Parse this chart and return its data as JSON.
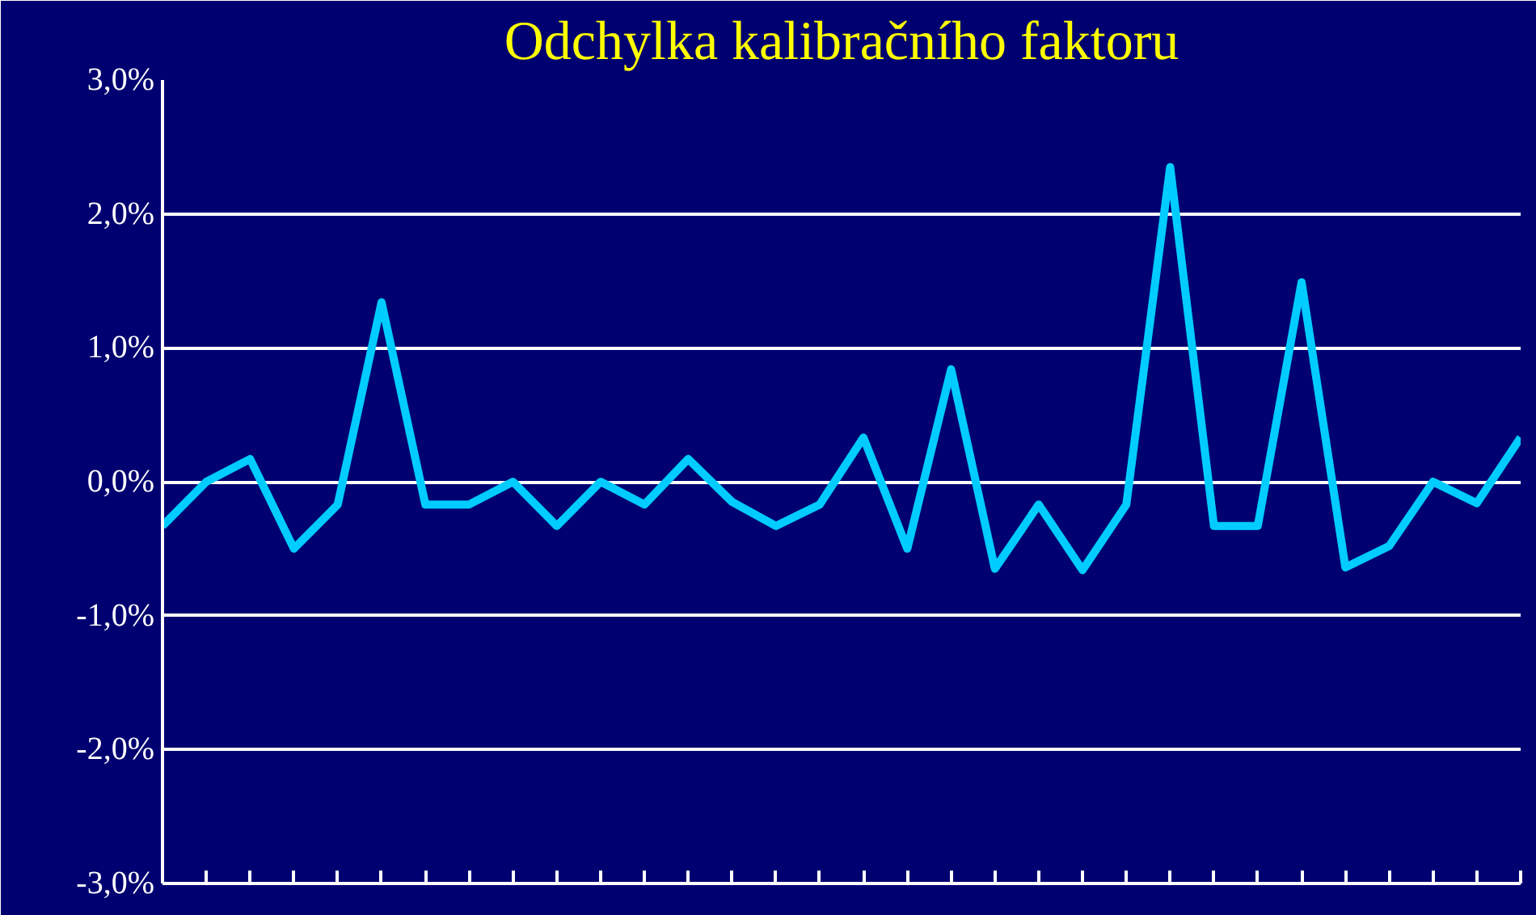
{
  "chart_data": {
    "type": "line",
    "title": "Odchylka kalibračního faktoru",
    "categories": [
      null,
      null,
      null,
      null,
      null,
      null,
      null,
      null,
      null,
      null,
      null,
      null,
      null,
      null,
      null,
      null,
      null,
      null,
      null,
      null,
      null,
      null,
      null,
      null,
      null,
      null,
      null,
      null,
      null,
      null,
      null,
      null
    ],
    "series": [
      {
        "color": "#00ccff",
        "values": [
          -0.33,
          0.0,
          0.17,
          -0.5,
          -0.17,
          1.34,
          -0.17,
          -0.17,
          0.0,
          -0.33,
          0.0,
          -0.17,
          0.17,
          -0.15,
          -0.33,
          -0.17,
          0.33,
          -0.5,
          0.84,
          -0.65,
          -0.17,
          -0.66,
          -0.17,
          2.35,
          -0.33,
          -0.33,
          1.49,
          -0.64,
          -0.48,
          0.0,
          -0.16,
          0.33
        ]
      }
    ],
    "ylim": [
      -3,
      3
    ],
    "yticks": [
      {
        "value": -3,
        "label": "-3,0%"
      },
      {
        "value": -2,
        "label": "-2,0%"
      },
      {
        "value": -1,
        "label": "-1,0%"
      },
      {
        "value": 0,
        "label": "0,0%"
      },
      {
        "value": 1,
        "label": "1,0%"
      },
      {
        "value": 2,
        "label": "2,0%"
      },
      {
        "value": 3,
        "label": "3,0%"
      }
    ],
    "grid": "y",
    "tick_labels": "y",
    "marker": "none",
    "line_style": "solid"
  }
}
